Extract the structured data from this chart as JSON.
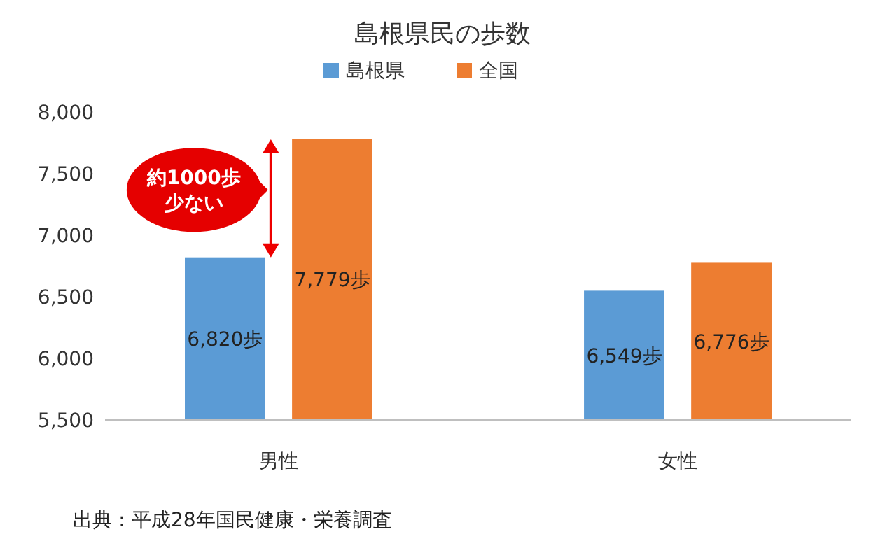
{
  "chart_data": {
    "type": "bar",
    "title": "島根県民の歩数",
    "categories": [
      "男性",
      "女性"
    ],
    "series": [
      {
        "name": "島根県",
        "color": "#5b9bd5",
        "values": [
          6820,
          6549
        ],
        "value_labels": [
          "6,820歩",
          "6,549歩"
        ]
      },
      {
        "name": "全国",
        "color": "#ed7d31",
        "values": [
          7779,
          6776
        ],
        "value_labels": [
          "7,779歩",
          "6,776歩"
        ]
      }
    ],
    "ylim": [
      5500,
      8000
    ],
    "yticks": [
      {
        "value": 5500,
        "label": "5,500"
      },
      {
        "value": 6000,
        "label": "6,000"
      },
      {
        "value": 6500,
        "label": "6,500"
      },
      {
        "value": 7000,
        "label": "7,000"
      },
      {
        "value": 7500,
        "label": "7,500"
      },
      {
        "value": 8000,
        "label": "8,000"
      }
    ],
    "grid": false,
    "legend": "top",
    "annotations": [
      "約1000歩少ない",
      "出典：平成28年国民健康・栄養調査"
    ]
  }
}
